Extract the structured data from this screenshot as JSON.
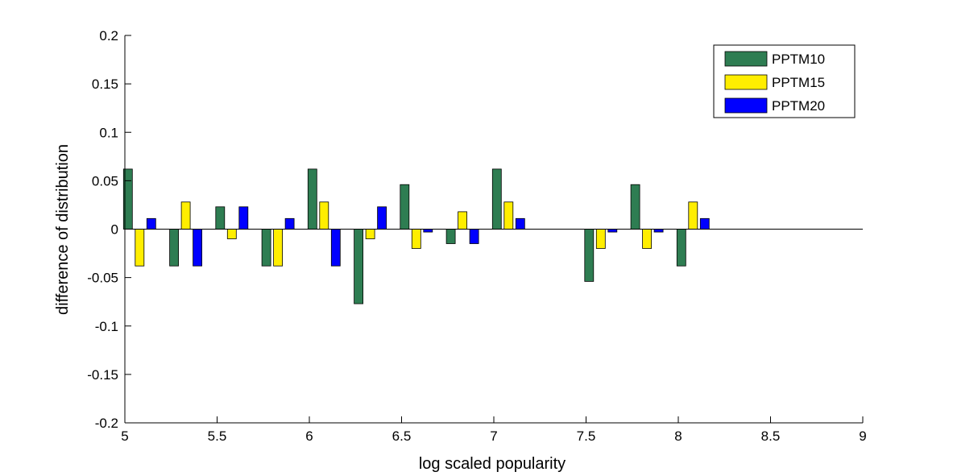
{
  "chart_data": {
    "type": "bar",
    "xlabel": "log scaled popularity",
    "ylabel": "difference of distribution",
    "xlim": [
      5,
      9
    ],
    "ylim": [
      -0.2,
      0.2
    ],
    "xticks": [
      "5",
      "5.5",
      "6",
      "6.5",
      "7",
      "7.5",
      "8",
      "8.5",
      "9"
    ],
    "yticks": [
      "-0.2",
      "-0.15",
      "-0.1",
      "-0.05",
      "0",
      "0.05",
      "0.1",
      "0.15",
      "0.2"
    ],
    "legend_position": "top-right",
    "grid": false,
    "x": [
      5.08,
      5.33,
      5.58,
      5.83,
      6.08,
      6.33,
      6.58,
      6.83,
      7.08,
      7.33,
      7.58,
      7.83,
      8.08
    ],
    "series": [
      {
        "name": "PPTM10",
        "color": "#2e7d52",
        "values": [
          0.062,
          -0.038,
          0.023,
          -0.038,
          0.062,
          -0.077,
          0.046,
          -0.015,
          0.062,
          0.0,
          -0.054,
          0.046,
          -0.038
        ]
      },
      {
        "name": "PPTM15",
        "color": "#ffee00",
        "values": [
          -0.038,
          0.028,
          -0.01,
          -0.038,
          0.028,
          -0.01,
          -0.02,
          0.018,
          0.028,
          0.0,
          -0.02,
          -0.02,
          0.028
        ]
      },
      {
        "name": "PPTM20",
        "color": "#0000ff",
        "values": [
          0.011,
          -0.038,
          0.023,
          0.011,
          -0.038,
          0.023,
          -0.003,
          -0.015,
          0.011,
          0.0,
          -0.003,
          -0.003,
          0.011
        ]
      }
    ]
  }
}
